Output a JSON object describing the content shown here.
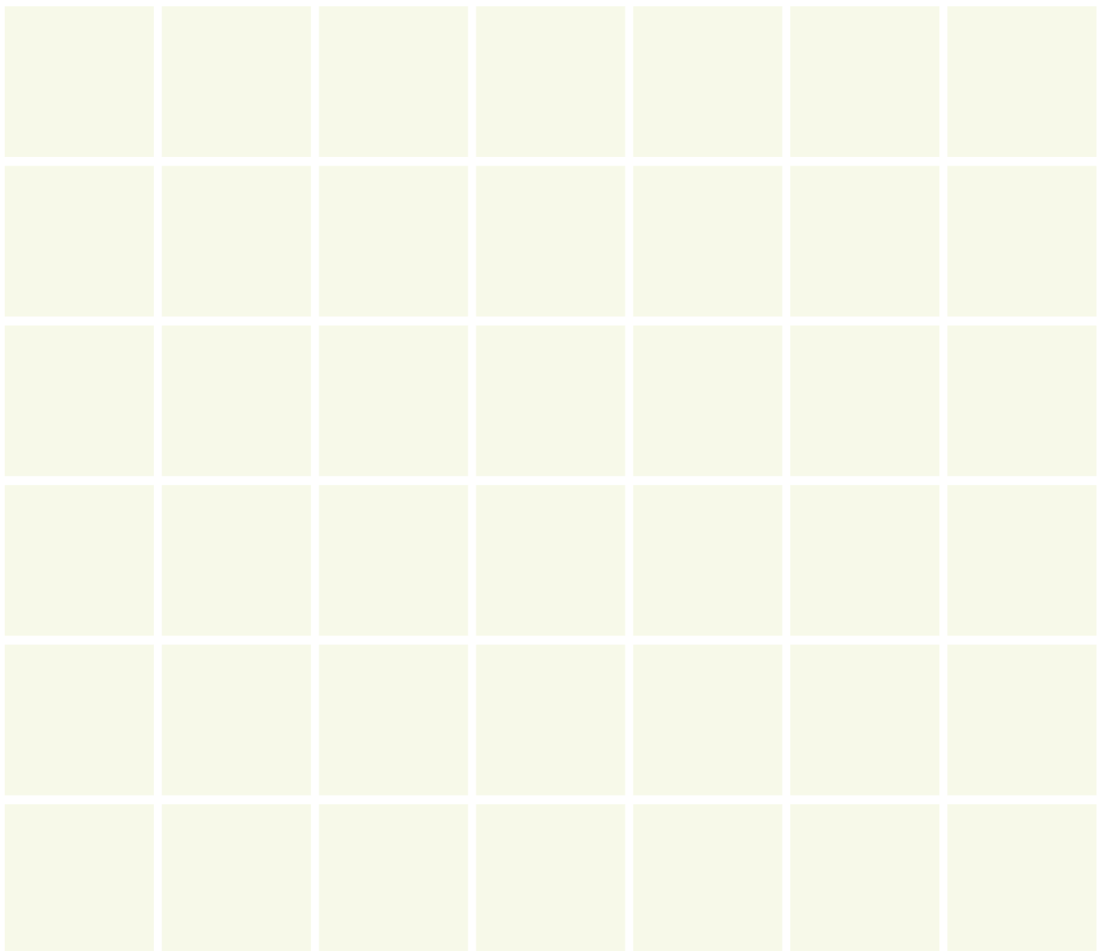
{
  "grid": {
    "rows": 6,
    "columns": 7,
    "cell_color": "#f7f9e9",
    "background": "#ffffff"
  }
}
